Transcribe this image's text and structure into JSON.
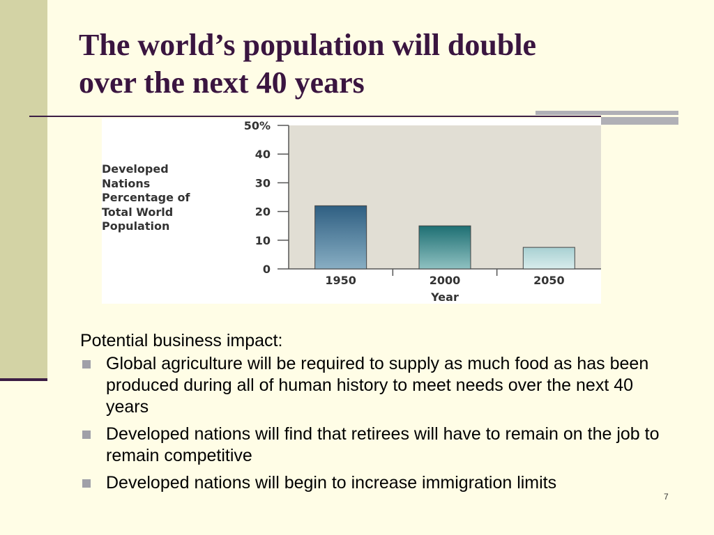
{
  "slide": {
    "title_lines": [
      "The world’s population will double",
      "over the next 40 years"
    ],
    "intro": "Potential business impact:",
    "bullets": [
      "Global agriculture will be required to supply as much food as has been produced during all of human history to meet needs over the next 40 years",
      "Developed nations will find that retirees will have to remain on the job to remain competitive",
      "Developed nations will begin to increase immigration limits"
    ],
    "page_number": "7"
  },
  "colors": {
    "background": "#fffde6",
    "side_band": "#d3d3a5",
    "title": "#3a1540",
    "plot_area": "#e1ded4"
  },
  "chart_data": {
    "type": "bar",
    "categories": [
      "1950",
      "2000",
      "2050"
    ],
    "values": [
      22,
      15,
      7.5
    ],
    "ylim": [
      0,
      50
    ],
    "ytick_labels": [
      "0",
      "10",
      "20",
      "30",
      "40",
      "50%"
    ],
    "ylabel_lines": [
      "Developed",
      "Nations",
      "Percentage of",
      "Total World",
      "Population"
    ],
    "xlabel": "Year",
    "title": "",
    "grid": false,
    "bar_colors": [
      [
        "#2f5f82",
        "#88aec3"
      ],
      [
        "#1e6f73",
        "#8fc1c1"
      ],
      [
        "#a8d0d2",
        "#d8ecec"
      ]
    ]
  }
}
